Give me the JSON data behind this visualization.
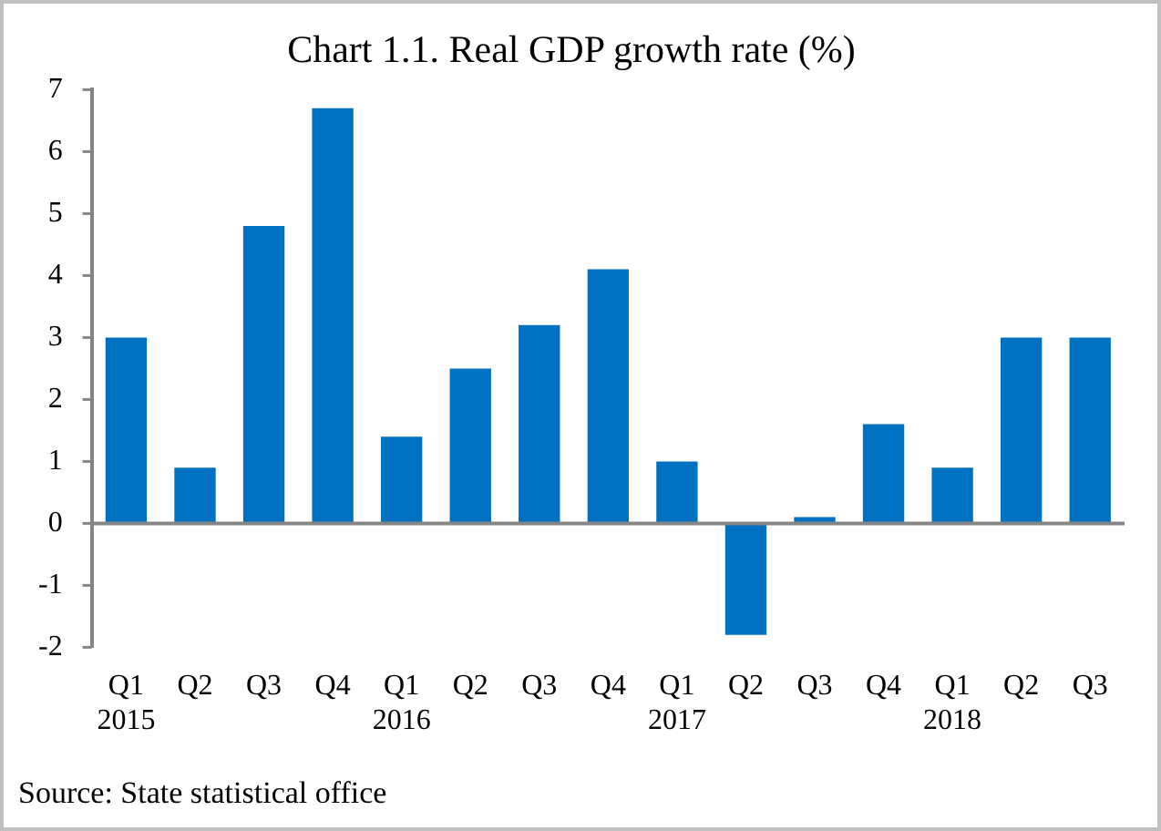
{
  "chart_data": {
    "type": "bar",
    "title": "Chart 1.1. Real GDP growth rate (%)",
    "categories": [
      "Q1\n2015",
      "Q2",
      "Q3",
      "Q4",
      "Q1\n2016",
      "Q2",
      "Q3",
      "Q4",
      "Q1\n2017",
      "Q2",
      "Q3",
      "Q4",
      "Q1\n2018",
      "Q2",
      "Q3"
    ],
    "values": [
      3.0,
      0.9,
      4.8,
      6.7,
      1.4,
      2.5,
      3.2,
      4.1,
      1.0,
      -1.8,
      0.1,
      1.6,
      0.9,
      3.0,
      3.0
    ],
    "color": "#0070c0",
    "ylim": [
      -2,
      7
    ],
    "yticks": [
      -2,
      -1,
      0,
      1,
      2,
      3,
      4,
      5,
      6,
      7
    ],
    "legend": false,
    "annotations": [
      "Source: State statistical office"
    ]
  }
}
